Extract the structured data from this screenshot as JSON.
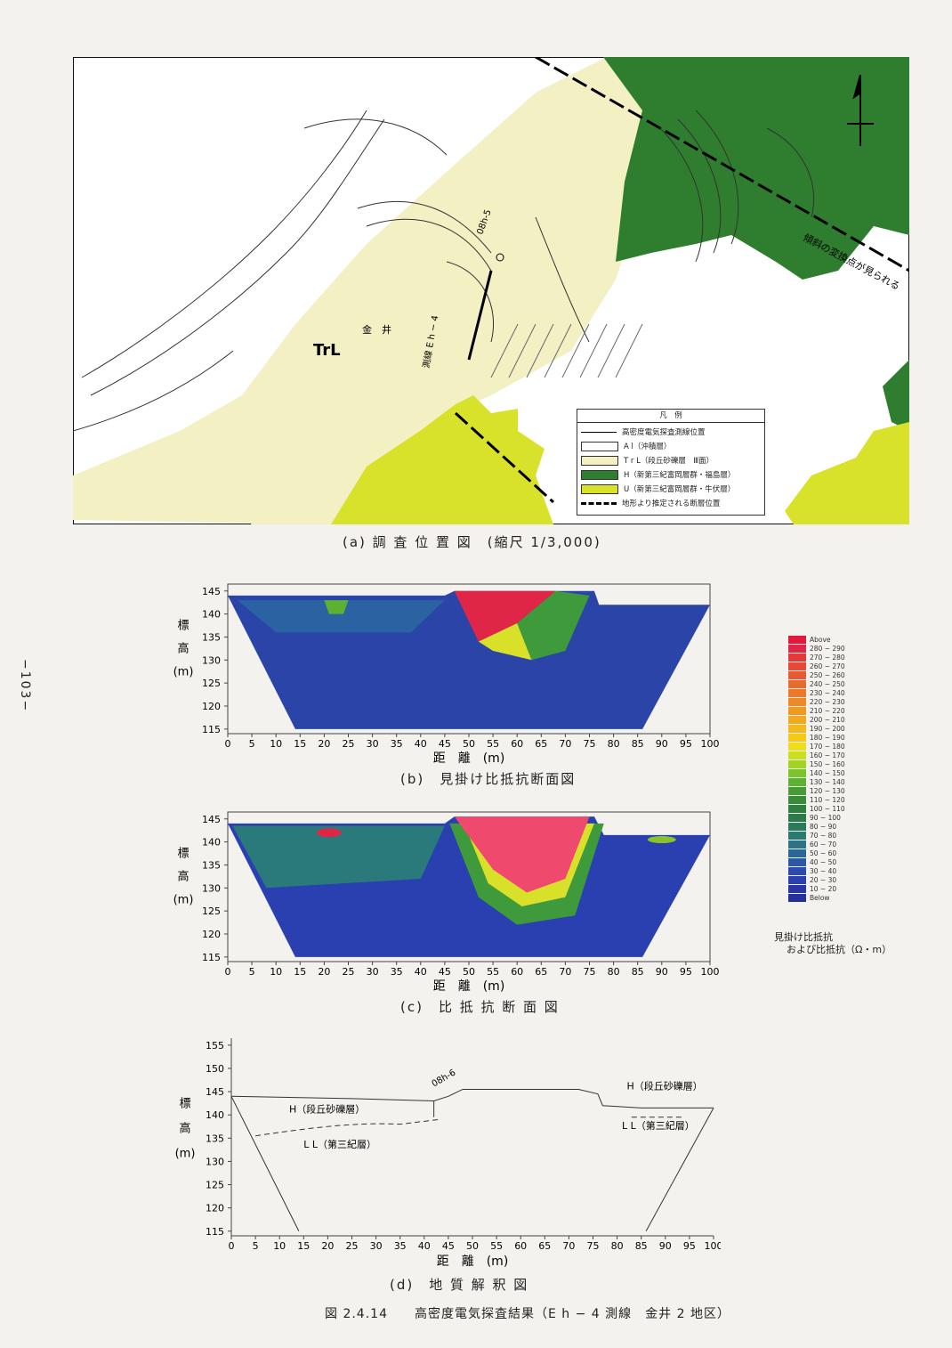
{
  "page_number": "−103−",
  "map": {
    "caption": "(a) 調 査 位 置 図　(縮尺 1/3,000)",
    "labels": {
      "trl": "TrL",
      "kanai": "金　井",
      "line": "測線 E h − 4",
      "fault_note": "傾斜の変換点が見られる",
      "bh": "08h-5"
    },
    "legend": {
      "title": "凡　例",
      "items": [
        {
          "label": "高密度電気探査測線位置",
          "color": "#000000"
        },
        {
          "label": "A l（沖積層）",
          "color": "#ffffff"
        },
        {
          "label": "T r L（段丘砂礫層　Ⅲ面）",
          "color": "#f3f0c4"
        },
        {
          "label": "H（新第三紀富岡層群・福島層）",
          "color": "#2f7d2f"
        },
        {
          "label": "U（新第三紀富岡層群・牛伏層）",
          "color": "#d9e22a"
        },
        {
          "label": "地形より推定される断層位置",
          "color": "#000000"
        }
      ]
    }
  },
  "section_b": {
    "caption": "(b)　見掛け比抵抗断面図",
    "y_ticks": [
      "145",
      "140",
      "135",
      "130",
      "125",
      "120",
      "115"
    ],
    "x_ticks": [
      "0",
      "5",
      "10",
      "15",
      "20",
      "25",
      "30",
      "35",
      "40",
      "45",
      "50",
      "55",
      "60",
      "65",
      "70",
      "75",
      "80",
      "85",
      "90",
      "95",
      "100"
    ],
    "ylabel": [
      "標",
      "高",
      "(m)"
    ],
    "xlabel": "距　離　(m)"
  },
  "section_c": {
    "caption": "(c)　比 抵 抗 断 面 図",
    "y_ticks": [
      "145",
      "140",
      "135",
      "130",
      "125",
      "120",
      "115"
    ],
    "x_ticks": [
      "0",
      "5",
      "10",
      "15",
      "20",
      "25",
      "30",
      "35",
      "40",
      "45",
      "50",
      "55",
      "60",
      "65",
      "70",
      "75",
      "80",
      "85",
      "90",
      "95",
      "100"
    ],
    "ylabel": [
      "標",
      "高",
      "(m)"
    ],
    "xlabel": "距　離　(m)"
  },
  "section_d": {
    "caption": "(d)　地 質 解 釈 図",
    "y_ticks": [
      "155",
      "150",
      "145",
      "140",
      "135",
      "130",
      "125",
      "120",
      "115"
    ],
    "x_ticks": [
      "0",
      "5",
      "10",
      "15",
      "20",
      "25",
      "30",
      "35",
      "40",
      "45",
      "50",
      "55",
      "60",
      "65",
      "70",
      "75",
      "80",
      "85",
      "90",
      "95",
      "100"
    ],
    "ylabel": [
      "標",
      "高",
      "(m)"
    ],
    "xlabel": "距　離　(m)",
    "labels": {
      "h_left": "H（段丘砂礫層）",
      "ll_left": "L L（第三紀層）",
      "h_right": "H（段丘砂礫層）",
      "ll_right": "L L（第三紀層）",
      "borehole": "08h-6"
    }
  },
  "color_scale": {
    "title_line1": "見掛け比抵抗",
    "title_line2": "および比抵抗（Ω・m）",
    "entries": [
      {
        "label": "Above",
        "color": "#e3183d"
      },
      {
        "label": "280 − 290",
        "color": "#e02646"
      },
      {
        "label": "270 − 280",
        "color": "#e23a3a"
      },
      {
        "label": "260 − 270",
        "color": "#e44a36"
      },
      {
        "label": "250 − 260",
        "color": "#e65a32"
      },
      {
        "label": "240 − 250",
        "color": "#e86a2e"
      },
      {
        "label": "230 − 240",
        "color": "#ea7a2a"
      },
      {
        "label": "220 − 230",
        "color": "#ec8a26"
      },
      {
        "label": "210 − 220",
        "color": "#ee9a22"
      },
      {
        "label": "200 − 210",
        "color": "#f0aa1e"
      },
      {
        "label": "190 − 200",
        "color": "#f2ba1a"
      },
      {
        "label": "180 − 190",
        "color": "#f4ca16"
      },
      {
        "label": "170 − 180",
        "color": "#f0dc1a"
      },
      {
        "label": "160 − 170",
        "color": "#c9e01e"
      },
      {
        "label": "150 − 160",
        "color": "#a2d426"
      },
      {
        "label": "140 − 150",
        "color": "#7cc42c"
      },
      {
        "label": "130 − 140",
        "color": "#5cb032"
      },
      {
        "label": "120 − 130",
        "color": "#469c36"
      },
      {
        "label": "110 − 120",
        "color": "#388c3a"
      },
      {
        "label": "100 − 110",
        "color": "#2e8040"
      },
      {
        "label": "90 − 100",
        "color": "#2a7a4c"
      },
      {
        "label": "80 − 90",
        "color": "#2a7a5e"
      },
      {
        "label": "70 − 80",
        "color": "#2a7a72"
      },
      {
        "label": "60 − 70",
        "color": "#2a7486"
      },
      {
        "label": "50 − 60",
        "color": "#2a6696"
      },
      {
        "label": "40 − 50",
        "color": "#2a58a4"
      },
      {
        "label": "30 − 40",
        "color": "#2a4aae"
      },
      {
        "label": "20 − 30",
        "color": "#2a40b0"
      },
      {
        "label": "10 − 20",
        "color": "#2a36a6"
      },
      {
        "label": "Below",
        "color": "#26309a"
      }
    ]
  },
  "figure_caption": "図 2.4.14　　高密度電気探査結果（E h − 4 測線　金井 2 地区）"
}
